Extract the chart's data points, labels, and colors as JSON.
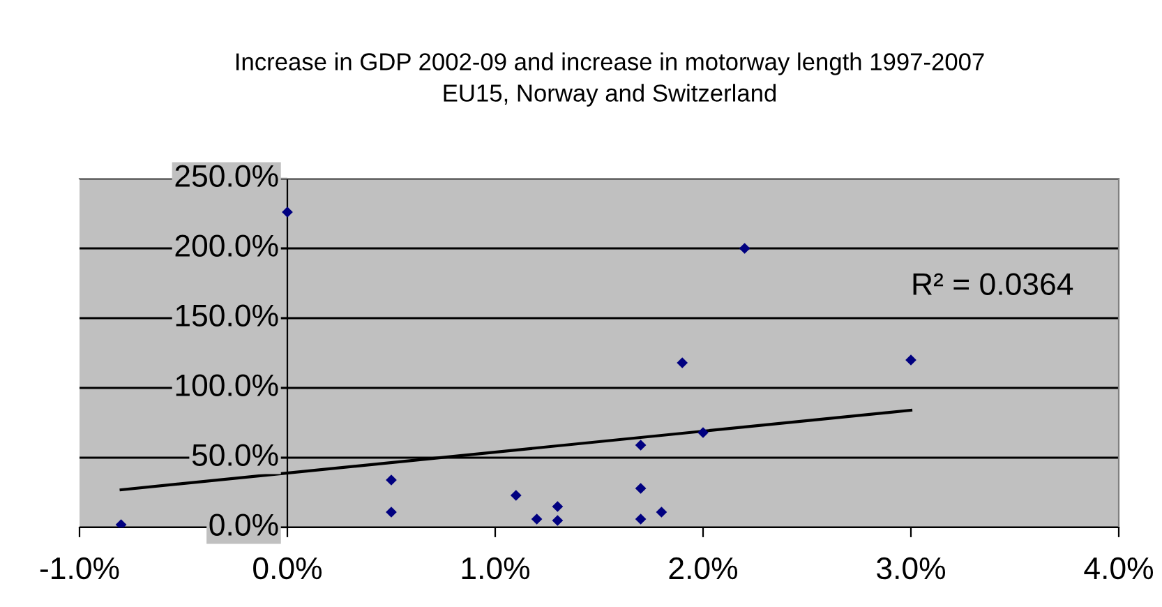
{
  "chart_data": {
    "type": "scatter",
    "title": "Increase in GDP 2002-09 and increase in motorway length 1997-2007 EU15, Norway and Switzerland",
    "series": [
      {
        "color": "#000080",
        "marker": "diamond",
        "x": [
          -0.8,
          0,
          0.5,
          0.5,
          1.1,
          1.2,
          1.3,
          1.3,
          2.2,
          1.9,
          3.0,
          2.0,
          1.7,
          1.7,
          1.7,
          1.8
        ],
        "values": [
          2,
          226,
          34,
          11,
          23,
          6,
          15,
          5,
          200,
          118,
          120,
          68,
          59,
          28,
          6,
          11
        ]
      },
      {
        "type": "line",
        "color": "#000000",
        "x": [
          -0.8,
          3.0
        ],
        "values": [
          27,
          84
        ]
      }
    ],
    "annotations": [
      "R² = 0.0364"
    ],
    "xlim": [
      -1,
      4
    ],
    "ylim": [
      0,
      250
    ],
    "xticks": [
      {
        "value": -1,
        "label": "-1.0%"
      },
      {
        "value": 0,
        "label": "0.0%"
      },
      {
        "value": 1,
        "label": "1.0%"
      },
      {
        "value": 2,
        "label": "2.0%"
      },
      {
        "value": 3,
        "label": "3.0%"
      },
      {
        "value": 4,
        "label": "4.0%"
      }
    ],
    "yticks": [
      {
        "value": 0,
        "label": "0.0%"
      },
      {
        "value": 50,
        "label": "50.0%"
      },
      {
        "value": 100,
        "label": "100.0%"
      },
      {
        "value": 150,
        "label": "150.0%"
      },
      {
        "value": 200,
        "label": "200.0%"
      },
      {
        "value": 250,
        "label": "250.0%"
      }
    ],
    "grid": "y"
  }
}
